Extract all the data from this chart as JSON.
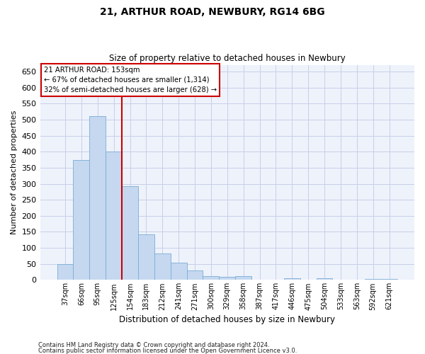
{
  "title1": "21, ARTHUR ROAD, NEWBURY, RG14 6BG",
  "title2": "Size of property relative to detached houses in Newbury",
  "xlabel": "Distribution of detached houses by size in Newbury",
  "ylabel": "Number of detached properties",
  "categories": [
    "37sqm",
    "66sqm",
    "95sqm",
    "125sqm",
    "154sqm",
    "183sqm",
    "212sqm",
    "241sqm",
    "271sqm",
    "300sqm",
    "329sqm",
    "358sqm",
    "387sqm",
    "417sqm",
    "446sqm",
    "475sqm",
    "504sqm",
    "533sqm",
    "563sqm",
    "592sqm",
    "621sqm"
  ],
  "values": [
    50,
    375,
    510,
    400,
    292,
    143,
    82,
    55,
    30,
    11,
    10,
    12,
    0,
    0,
    5,
    0,
    5,
    0,
    0,
    3,
    3
  ],
  "bar_color": "#c5d8f0",
  "bar_edge_color": "#7aadd4",
  "annotation_text": "21 ARTHUR ROAD: 153sqm\n← 67% of detached houses are smaller (1,314)\n32% of semi-detached houses are larger (628) →",
  "vline_x": 3.5,
  "vline_color": "#cc0000",
  "annotation_box_color": "#ffffff",
  "annotation_box_edge": "#cc0000",
  "ylim": [
    0,
    670
  ],
  "yticks": [
    0,
    50,
    100,
    150,
    200,
    250,
    300,
    350,
    400,
    450,
    500,
    550,
    600,
    650
  ],
  "footer1": "Contains HM Land Registry data © Crown copyright and database right 2024.",
  "footer2": "Contains public sector information licensed under the Open Government Licence v3.0.",
  "bg_color": "#eef2fb",
  "grid_color": "#c8cfe8"
}
